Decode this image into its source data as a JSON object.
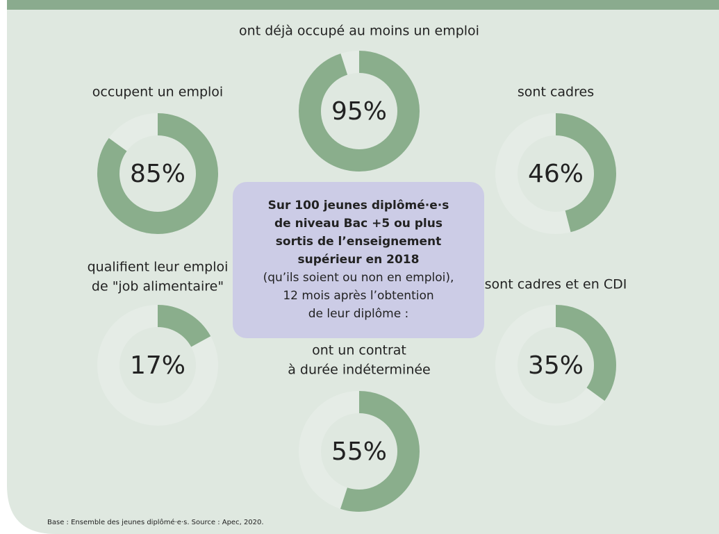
{
  "chart_data": [
    {
      "type": "donut",
      "title": [
        "ont déjà occupé au moins un emploi"
      ],
      "values": [
        95
      ],
      "value_labels": [
        "95%"
      ],
      "color": "#8aae8c"
    },
    {
      "type": "donut",
      "title": [
        "occupent un emploi"
      ],
      "values": [
        85
      ],
      "value_labels": [
        "85%"
      ],
      "color": "#8aae8c"
    },
    {
      "type": "donut",
      "title": [
        "sont cadres"
      ],
      "values": [
        46
      ],
      "value_labels": [
        "46%"
      ],
      "color": "#8aae8c"
    },
    {
      "type": "donut",
      "title": [
        "qualifient leur emploi",
        "de \"job alimentaire\""
      ],
      "values": [
        17
      ],
      "value_labels": [
        "17%"
      ],
      "color": "#8aae8c"
    },
    {
      "type": "donut",
      "title": [
        "sont cadres et en CDI"
      ],
      "values": [
        35
      ],
      "value_labels": [
        "35%"
      ],
      "color": "#8aae8c"
    },
    {
      "type": "donut",
      "title": [
        "ont un contrat",
        "à durée indéterminée"
      ],
      "values": [
        55
      ],
      "value_labels": [
        "55%"
      ],
      "color": "#8aae8c"
    }
  ],
  "center_box": {
    "bold_lines": [
      "Sur 100 jeunes diplômé·e·s",
      "de niveau Bac +5 ou plus",
      "sortis de l’enseignement",
      "supérieur en 2018"
    ],
    "lines": [
      "(qu’ils soient ou non en emploi),",
      "12 mois après l’obtention",
      "de leur diplôme :"
    ]
  },
  "source": "Base : Ensemble des jeunes diplômé·e·s. Source : Apec, 2020."
}
